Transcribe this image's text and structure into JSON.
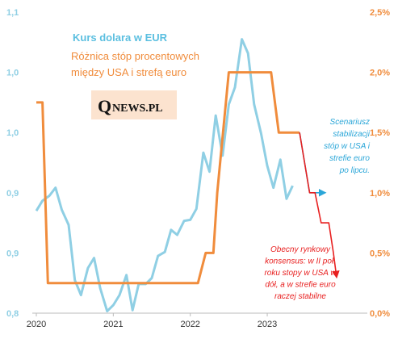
{
  "chart_data": {
    "type": "line",
    "y_left_ticks": [
      "1,1",
      "1,0",
      "1,0",
      "0,9",
      "0,9",
      "0,8"
    ],
    "y_left_range": [
      0.8,
      1.1
    ],
    "y_right_ticks": [
      "2,5%",
      "2,0%",
      "1,5%",
      "1,0%",
      "0,5%",
      "0,0%"
    ],
    "y_right_range": [
      0,
      2.5
    ],
    "x_ticks": [
      "2020",
      "2021",
      "2022",
      "2023"
    ],
    "x_range": [
      2020,
      2024.3
    ],
    "series": [
      {
        "name": "Kurs dolara w EUR",
        "axis": "left",
        "color": "#8fcfe4",
        "x": [
          2020.0,
          2020.08,
          2020.17,
          2020.25,
          2020.33,
          2020.42,
          2020.5,
          2020.58,
          2020.67,
          2020.75,
          2020.83,
          2020.92,
          2021.0,
          2021.08,
          2021.17,
          2021.25,
          2021.33,
          2021.42,
          2021.5,
          2021.58,
          2021.67,
          2021.75,
          2021.83,
          2021.92,
          2022.0,
          2022.08,
          2022.17,
          2022.25,
          2022.33,
          2022.42,
          2022.5,
          2022.58,
          2022.67,
          2022.75,
          2022.83,
          2022.92,
          2023.0,
          2023.08,
          2023.17,
          2023.25,
          2023.33
        ],
        "values": [
          0.902,
          0.912,
          0.917,
          0.925,
          0.903,
          0.888,
          0.833,
          0.818,
          0.845,
          0.855,
          0.825,
          0.802,
          0.808,
          0.818,
          0.838,
          0.803,
          0.829,
          0.829,
          0.835,
          0.857,
          0.861,
          0.883,
          0.878,
          0.892,
          0.893,
          0.904,
          0.96,
          0.941,
          0.997,
          0.957,
          1.008,
          1.025,
          1.073,
          1.059,
          1.008,
          0.979,
          0.947,
          0.925,
          0.953,
          0.914,
          0.927
        ]
      },
      {
        "name": "Różnica stóp procentowych między USA i strefą euro",
        "axis": "right",
        "color": "#f08c3c",
        "x": [
          2020.0,
          2020.08,
          2020.15,
          2020.2,
          2022.1,
          2022.2,
          2022.3,
          2022.35,
          2022.5,
          2023.05,
          2023.15,
          2023.3,
          2023.42
        ],
        "values": [
          1.75,
          1.75,
          0.25,
          0.25,
          0.25,
          0.5,
          0.5,
          1.0,
          2.0,
          2.0,
          1.5,
          1.5,
          1.5
        ]
      },
      {
        "name": "Scenariusz stabilizacji",
        "axis": "right",
        "color": "#2aa6d8",
        "x": [
          2023.42,
          2023.55,
          2023.75
        ],
        "values": [
          1.5,
          1.0,
          1.0
        ]
      },
      {
        "name": "Obecny rynkowy konsensus",
        "axis": "right",
        "color": "#e82020",
        "x": [
          2023.42,
          2023.55,
          2023.62,
          2023.7,
          2023.75,
          2023.8,
          2023.86,
          2023.9
        ],
        "values": [
          1.5,
          1.0,
          1.0,
          0.75,
          0.75,
          0.75,
          0.5,
          0.3
        ]
      }
    ],
    "grid": false
  },
  "legend": {
    "usd": "Kurs dolara w EUR",
    "rate_line1": "Różnica stóp procentowych",
    "rate_line2": "między USA i strefą euro"
  },
  "logo": {
    "q": "Q",
    "text": "NEWS.PL"
  },
  "note_blue": [
    "Scenariusz",
    "stabilizacji",
    "stóp w USA i",
    "strefie euro",
    "po lipcu."
  ],
  "note_red": [
    "Obecny rynkowy",
    "konsensus: w II poł.",
    "roku stopy w USA w",
    "dół, a w strefie euro",
    "raczej stabilne"
  ]
}
